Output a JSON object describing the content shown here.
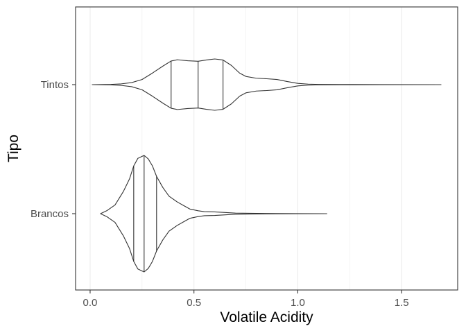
{
  "chart_data": {
    "type": "violin",
    "orientation": "horizontal",
    "xlabel": "Volatile Acidity",
    "ylabel": "Tipo",
    "xlim": [
      -0.07,
      1.77
    ],
    "x_ticks": [
      0.0,
      0.5,
      1.0,
      1.5
    ],
    "x_tick_labels": [
      "0.0",
      "0.5",
      "1.0",
      "1.5"
    ],
    "grid": "vertical major and minor, light grey",
    "legend": "none",
    "colors": {
      "outline": "#333333",
      "grid": "#ebebeb",
      "panel_border": "#333333",
      "fill": "#ffffff"
    },
    "categories": [
      "Tintos",
      "Brancos"
    ],
    "series": [
      {
        "name": "Tintos",
        "min": 0.01,
        "max": 1.69,
        "quantiles": [
          0.39,
          0.52,
          0.64
        ],
        "density": [
          [
            0.01,
            0.0
          ],
          [
            0.1,
            0.01
          ],
          [
            0.15,
            0.03
          ],
          [
            0.2,
            0.08
          ],
          [
            0.25,
            0.2
          ],
          [
            0.3,
            0.45
          ],
          [
            0.35,
            0.72
          ],
          [
            0.39,
            0.92
          ],
          [
            0.42,
            0.97
          ],
          [
            0.47,
            0.93
          ],
          [
            0.52,
            0.91
          ],
          [
            0.56,
            0.96
          ],
          [
            0.6,
            1.0
          ],
          [
            0.64,
            0.96
          ],
          [
            0.68,
            0.75
          ],
          [
            0.72,
            0.45
          ],
          [
            0.75,
            0.32
          ],
          [
            0.8,
            0.25
          ],
          [
            0.85,
            0.23
          ],
          [
            0.9,
            0.2
          ],
          [
            0.95,
            0.12
          ],
          [
            1.0,
            0.05
          ],
          [
            1.05,
            0.02
          ],
          [
            1.1,
            0.01
          ],
          [
            1.2,
            0.005
          ],
          [
            1.4,
            0.002
          ],
          [
            1.69,
            0.0
          ]
        ]
      },
      {
        "name": "Brancos",
        "min": 0.05,
        "max": 1.14,
        "quantiles": [
          0.21,
          0.26,
          0.32
        ],
        "density": [
          [
            0.05,
            0.0
          ],
          [
            0.08,
            0.05
          ],
          [
            0.12,
            0.15
          ],
          [
            0.16,
            0.38
          ],
          [
            0.19,
            0.6
          ],
          [
            0.21,
            0.82
          ],
          [
            0.23,
            0.95
          ],
          [
            0.26,
            1.0
          ],
          [
            0.28,
            0.94
          ],
          [
            0.3,
            0.82
          ],
          [
            0.32,
            0.64
          ],
          [
            0.35,
            0.45
          ],
          [
            0.38,
            0.3
          ],
          [
            0.42,
            0.2
          ],
          [
            0.45,
            0.14
          ],
          [
            0.48,
            0.08
          ],
          [
            0.52,
            0.05
          ],
          [
            0.55,
            0.035
          ],
          [
            0.6,
            0.03
          ],
          [
            0.65,
            0.02
          ],
          [
            0.7,
            0.01
          ],
          [
            0.8,
            0.005
          ],
          [
            0.9,
            0.003
          ],
          [
            1.0,
            0.001
          ],
          [
            1.14,
            0.0
          ]
        ]
      }
    ]
  }
}
